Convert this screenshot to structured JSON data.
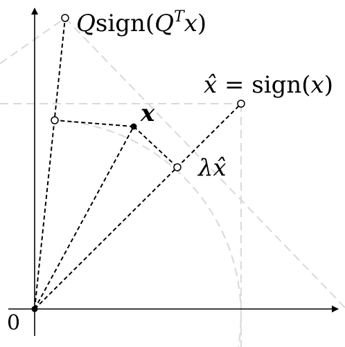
{
  "diagram": {
    "origin_label": "0",
    "points": {
      "qsign": {
        "label_prefix": "Q",
        "label_func": "sign(",
        "label_inner": "Q",
        "label_sup": "T",
        "label_arg": "x",
        "label_close": ")"
      },
      "xhat": {
        "label_var": "x̂",
        "label_eq": " = sign(",
        "label_arg": "x",
        "label_close": ")"
      },
      "x": {
        "label": "x"
      },
      "lambda_xhat": {
        "label": "λx̂"
      }
    },
    "colors": {
      "axis": "#000000",
      "guide": "#d9d9d9",
      "dashed": "#000000",
      "filled_point": "#000000",
      "open_point_fill": "#ffffff"
    }
  }
}
